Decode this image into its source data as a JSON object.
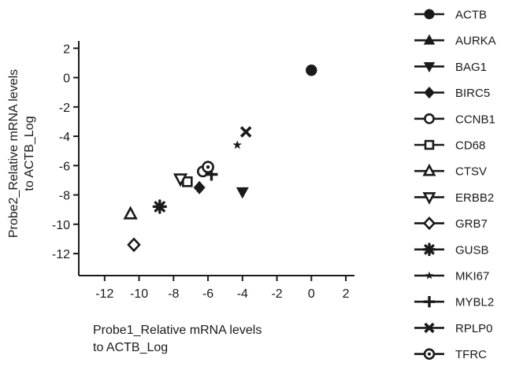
{
  "chart_data": {
    "type": "scatter",
    "xlabel": [
      "Probe1_Relative mRNA levels",
      "to ACTB_Log"
    ],
    "ylabel": [
      "Probe2_Relative mRNA levels",
      "to ACTB_Log"
    ],
    "xlim": [
      -13.5,
      2.5
    ],
    "ylim": [
      -13.5,
      2.5
    ],
    "xticks": [
      -12,
      -10,
      -8,
      -6,
      -4,
      -2,
      0,
      2
    ],
    "yticks": [
      -12,
      -10,
      -8,
      -6,
      -4,
      -2,
      0,
      2
    ],
    "grid": false,
    "legend_position": "right",
    "series": [
      {
        "name": "ACTB",
        "marker": "circle",
        "x": 0.0,
        "y": 0.5
      },
      {
        "name": "AURKA",
        "marker": "triangle-up",
        "x": -10.5,
        "y": -9.3
      },
      {
        "name": "BAG1",
        "marker": "triangle-down",
        "x": -4.0,
        "y": -7.8
      },
      {
        "name": "BIRC5",
        "marker": "diamond",
        "x": -6.5,
        "y": -7.5
      },
      {
        "name": "CCNB1",
        "marker": "circle-open",
        "x": -6.3,
        "y": -6.4
      },
      {
        "name": "CD68",
        "marker": "square-open",
        "x": -7.2,
        "y": -7.1
      },
      {
        "name": "CTSV",
        "marker": "triangle-up-open",
        "x": -10.5,
        "y": -9.3
      },
      {
        "name": "ERBB2",
        "marker": "triangle-down-open",
        "x": -7.6,
        "y": -6.9
      },
      {
        "name": "GRB7",
        "marker": "diamond-open",
        "x": -10.3,
        "y": -11.4
      },
      {
        "name": "GUSB",
        "marker": "asterisk",
        "x": -8.8,
        "y": -8.8
      },
      {
        "name": "MKI67",
        "marker": "star",
        "x": -4.3,
        "y": -4.6
      },
      {
        "name": "MYBL2",
        "marker": "plus",
        "x": -5.8,
        "y": -6.6
      },
      {
        "name": "RPLP0",
        "marker": "cross",
        "x": -3.8,
        "y": -3.7
      },
      {
        "name": "TFRC",
        "marker": "circle-ring",
        "x": -6.0,
        "y": -6.1
      }
    ]
  }
}
